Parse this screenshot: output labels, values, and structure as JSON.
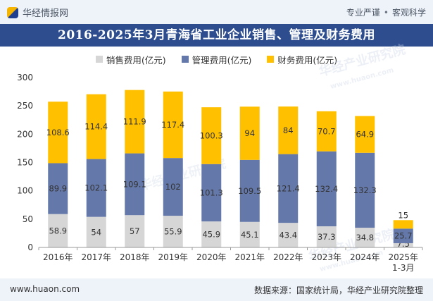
{
  "header": {
    "brand": "华经情报网",
    "slogan_left": "专业严谨",
    "slogan_right": "客观科学"
  },
  "footer": {
    "website": "www.huaon.com",
    "source": "数据来源：国家统计局，华经产业研究院整理"
  },
  "watermark": {
    "text": "华经产业研究院",
    "url": "www.huaon.com"
  },
  "colors": {
    "sales": "#d6d6d6",
    "management": "#6478aa",
    "finance": "#ffc000",
    "title_bg": "#2d4d8e"
  },
  "chart_data": {
    "type": "bar",
    "stacked": true,
    "title": "2016-2025年3月青海省工业企业销售、管理及财务费用",
    "categories": [
      "2016年",
      "2017年",
      "2018年",
      "2019年",
      "2020年",
      "2021年",
      "2022年",
      "2023年",
      "2024年",
      "2025年\n1-3月"
    ],
    "series": [
      {
        "name": "销售费用(亿元)",
        "values": [
          58.9,
          54,
          57,
          55.9,
          45.9,
          45.1,
          43.4,
          37.3,
          34.8,
          7.5
        ]
      },
      {
        "name": "管理费用(亿元)",
        "values": [
          89.9,
          102.1,
          109.1,
          102,
          101.3,
          109.5,
          121.4,
          132.4,
          132.3,
          25.7
        ]
      },
      {
        "name": "财务费用(亿元)",
        "values": [
          108.6,
          114.4,
          111.9,
          117.4,
          100.3,
          94,
          84,
          70.7,
          64.9,
          15
        ]
      }
    ],
    "value_labels": [
      [
        "58.9",
        "54",
        "57",
        "55.9",
        "45.9",
        "45.1",
        "43.4",
        "37.3",
        "34.8",
        "7.5"
      ],
      [
        "89.9",
        "102.1",
        "109.1",
        "102",
        "101.3",
        "109.5",
        "121.4",
        "132.4",
        "132.3",
        "25.7"
      ],
      [
        "108.6",
        "114.4",
        "111.9",
        "117.4",
        "100.3",
        "94",
        "84",
        "70.7",
        "64.9",
        "15"
      ]
    ],
    "y_ticks": [
      0,
      50,
      100,
      150,
      200,
      250,
      300
    ],
    "ylim": [
      0,
      300
    ],
    "xlabel": "",
    "ylabel": "",
    "grid": false,
    "legend_position": "top"
  }
}
